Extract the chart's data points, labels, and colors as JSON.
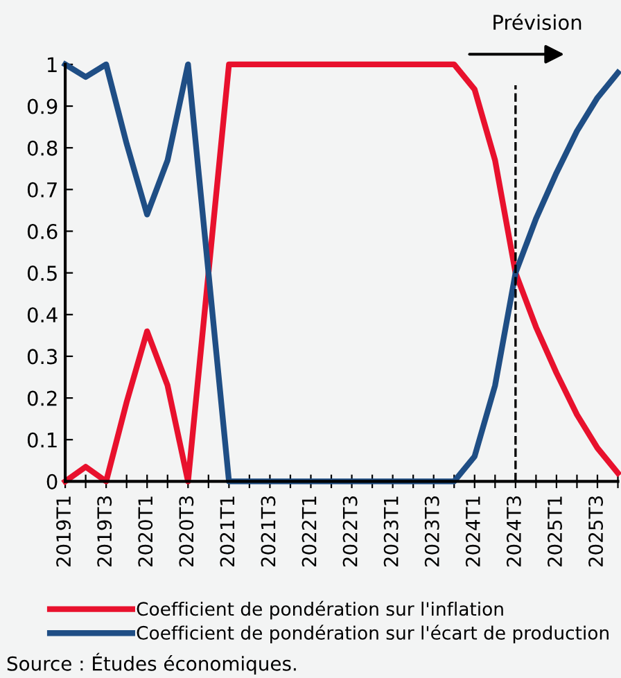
{
  "chart_data": {
    "type": "line",
    "categories": [
      "2019T1",
      null,
      "2019T3",
      null,
      "2020T1",
      null,
      "2020T3",
      null,
      "2021T1",
      null,
      "2021T3",
      null,
      "2022T1",
      null,
      "2022T3",
      null,
      "2023T1",
      null,
      "2023T3",
      null,
      "2024T1",
      null,
      "2024T3",
      null,
      "2025T1",
      null,
      "2025T3",
      null
    ],
    "series": [
      {
        "name": "Coefficient de pondération sur l'inflation",
        "color": "#e8112d",
        "values": [
          0,
          0.035,
          0,
          0.19,
          0.36,
          0.23,
          0,
          0.5,
          1,
          1,
          1,
          1,
          1,
          1,
          1,
          1,
          1,
          1,
          1,
          1,
          0.94,
          0.77,
          0.5,
          0.37,
          0.26,
          0.16,
          0.08,
          0.02
        ]
      },
      {
        "name": "Coefficient de pondération sur l'écart de production",
        "color": "#1f4e85",
        "values": [
          1,
          0.97,
          1,
          0.81,
          0.64,
          0.77,
          1,
          0.5,
          0,
          0,
          0,
          0,
          0,
          0,
          0,
          0,
          0,
          0,
          0,
          0,
          0.06,
          0.23,
          0.5,
          0.63,
          0.74,
          0.84,
          0.92,
          0.98
        ]
      }
    ],
    "ylim": [
      0,
      1
    ],
    "yticks": [
      0,
      0.1,
      0.2,
      0.3,
      0.4,
      0.5,
      0.6,
      0.7,
      0.8,
      0.9,
      1
    ],
    "ref_lines": [
      {
        "axis": "x",
        "value": "2024T3",
        "label": null,
        "color": "#000000",
        "line_style": "dashed"
      }
    ],
    "annotations": [
      "Prévision",
      "Source : Études économiques."
    ],
    "grid": false,
    "legend": "bottom",
    "marker": "none",
    "line_style": "solid"
  }
}
